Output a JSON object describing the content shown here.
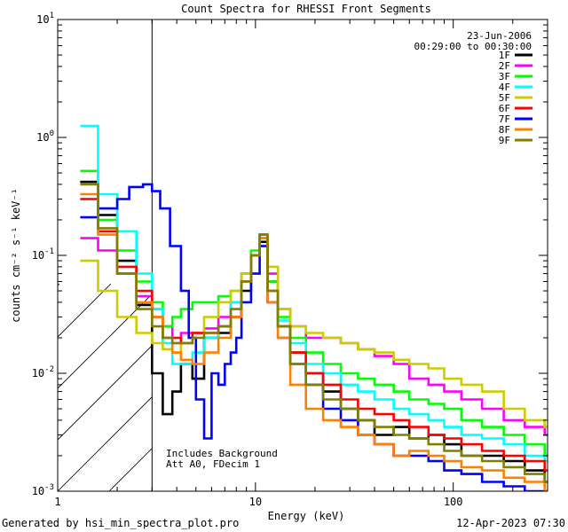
{
  "chart_data": {
    "type": "line",
    "title": "Count Spectra for RHESSI Front Segments",
    "xlabel": "Energy (keV)",
    "ylabel": "counts cm⁻² s⁻¹ keV⁻¹",
    "xscale": "log",
    "yscale": "log",
    "xlim": [
      1,
      300
    ],
    "ylim": [
      0.001,
      10
    ],
    "x_ticks": [
      {
        "value": 1,
        "label": "1"
      },
      {
        "value": 10,
        "label": "10"
      },
      {
        "value": 100,
        "label": "100"
      }
    ],
    "y_ticks": [
      {
        "value": 0.001,
        "base": "10",
        "exp": "-3"
      },
      {
        "value": 0.01,
        "base": "10",
        "exp": "-2"
      },
      {
        "value": 0.1,
        "base": "10",
        "exp": "-1"
      },
      {
        "value": 1,
        "base": "10",
        "exp": "0"
      },
      {
        "value": 10,
        "base": "10",
        "exp": "1"
      }
    ],
    "attenuated_region_max_energy": 3,
    "info_top": [
      "23-Jun-2006",
      "00:29:00 to 00:30:00"
    ],
    "info_bottom": [
      "Includes Background",
      "Att A0, FDecim 1"
    ],
    "legend_position": "top-right",
    "series": [
      {
        "name": "1F",
        "color": "#000000",
        "x": [
          1.3,
          1.6,
          2.0,
          2.5,
          3.0,
          3.4,
          3.8,
          4.2,
          4.8,
          5.5,
          6.5,
          7.5,
          8.5,
          9.5,
          10.5,
          11.5,
          13,
          15,
          18,
          22,
          27,
          33,
          40,
          50,
          60,
          75,
          90,
          110,
          140,
          180,
          230,
          290
        ],
        "y": [
          0.42,
          0.22,
          0.09,
          0.038,
          0.01,
          0.0045,
          0.007,
          0.012,
          0.009,
          0.02,
          0.022,
          0.03,
          0.05,
          0.1,
          0.13,
          0.06,
          0.025,
          0.015,
          0.01,
          0.007,
          0.005,
          0.004,
          0.003,
          0.0035,
          0.0028,
          0.003,
          0.0025,
          0.002,
          0.002,
          0.0018,
          0.0015,
          0.0012
        ]
      },
      {
        "name": "2F",
        "color": "#ff00ff",
        "x": [
          1.3,
          1.6,
          2.0,
          2.5,
          3.0,
          3.4,
          3.8,
          4.2,
          4.8,
          5.5,
          6.5,
          7.5,
          8.5,
          9.5,
          10.5,
          11.5,
          13,
          15,
          18,
          22,
          27,
          33,
          40,
          50,
          60,
          75,
          90,
          110,
          140,
          180,
          230,
          290
        ],
        "y": [
          0.14,
          0.11,
          0.07,
          0.045,
          0.035,
          0.025,
          0.018,
          0.022,
          0.022,
          0.024,
          0.03,
          0.04,
          0.07,
          0.1,
          0.12,
          0.07,
          0.035,
          0.025,
          0.02,
          0.02,
          0.018,
          0.016,
          0.014,
          0.012,
          0.009,
          0.008,
          0.007,
          0.006,
          0.005,
          0.004,
          0.0035,
          0.003
        ]
      },
      {
        "name": "3F",
        "color": "#00ff00",
        "x": [
          1.3,
          1.6,
          2.0,
          2.5,
          3.0,
          3.4,
          3.8,
          4.2,
          4.8,
          5.5,
          6.5,
          7.5,
          8.5,
          9.5,
          10.5,
          11.5,
          13,
          15,
          18,
          22,
          27,
          33,
          40,
          50,
          60,
          75,
          90,
          110,
          140,
          180,
          230,
          290
        ],
        "y": [
          0.52,
          0.2,
          0.11,
          0.06,
          0.04,
          0.025,
          0.03,
          0.035,
          0.04,
          0.04,
          0.045,
          0.05,
          0.07,
          0.11,
          0.14,
          0.06,
          0.03,
          0.02,
          0.015,
          0.012,
          0.01,
          0.009,
          0.008,
          0.007,
          0.006,
          0.0055,
          0.005,
          0.004,
          0.0035,
          0.003,
          0.0025,
          0.002
        ]
      },
      {
        "name": "4F",
        "color": "#00ffff",
        "x": [
          1.3,
          1.6,
          2.0,
          2.5,
          3.0,
          3.4,
          3.8,
          4.2,
          4.8,
          5.5,
          6.5,
          7.5,
          8.5,
          9.5,
          10.5,
          11.5,
          13,
          15,
          18,
          22,
          27,
          33,
          40,
          50,
          60,
          75,
          90,
          110,
          140,
          180,
          230,
          290
        ],
        "y": [
          1.25,
          0.33,
          0.16,
          0.07,
          0.035,
          0.018,
          0.012,
          0.012,
          0.015,
          0.02,
          0.025,
          0.04,
          0.06,
          0.1,
          0.14,
          0.05,
          0.028,
          0.018,
          0.012,
          0.01,
          0.008,
          0.007,
          0.006,
          0.005,
          0.0045,
          0.004,
          0.0035,
          0.003,
          0.0028,
          0.0025,
          0.002,
          0.0018
        ]
      },
      {
        "name": "5F",
        "color": "#cccc00",
        "x": [
          1.3,
          1.6,
          2.0,
          2.5,
          3.0,
          3.4,
          3.8,
          4.2,
          4.8,
          5.5,
          6.5,
          7.5,
          8.5,
          9.5,
          10.5,
          11.5,
          13,
          15,
          18,
          22,
          27,
          33,
          40,
          50,
          60,
          75,
          90,
          110,
          140,
          180,
          230,
          290
        ],
        "y": [
          0.09,
          0.05,
          0.03,
          0.022,
          0.018,
          0.016,
          0.015,
          0.018,
          0.022,
          0.03,
          0.04,
          0.05,
          0.07,
          0.1,
          0.12,
          0.08,
          0.035,
          0.025,
          0.022,
          0.02,
          0.018,
          0.016,
          0.015,
          0.013,
          0.012,
          0.011,
          0.009,
          0.008,
          0.007,
          0.005,
          0.004,
          0.0035
        ]
      },
      {
        "name": "6F",
        "color": "#ff0000",
        "x": [
          1.3,
          1.6,
          2.0,
          2.5,
          3.0,
          3.4,
          3.8,
          4.2,
          4.8,
          5.5,
          6.5,
          7.5,
          8.5,
          9.5,
          10.5,
          11.5,
          13,
          15,
          18,
          22,
          27,
          33,
          40,
          50,
          60,
          75,
          90,
          110,
          140,
          180,
          230,
          290
        ],
        "y": [
          0.3,
          0.16,
          0.08,
          0.05,
          0.03,
          0.02,
          0.02,
          0.018,
          0.022,
          0.022,
          0.025,
          0.03,
          0.06,
          0.1,
          0.15,
          0.05,
          0.025,
          0.015,
          0.01,
          0.008,
          0.006,
          0.005,
          0.0045,
          0.004,
          0.0035,
          0.003,
          0.0028,
          0.0025,
          0.0022,
          0.002,
          0.0018,
          0.0015
        ]
      },
      {
        "name": "7F",
        "color": "#0000ff",
        "x": [
          1.3,
          1.6,
          2.0,
          2.3,
          2.7,
          3.0,
          3.3,
          3.7,
          4.2,
          4.6,
          5.0,
          5.5,
          6.0,
          6.5,
          7.0,
          7.5,
          8.0,
          8.5,
          9.5,
          10.5,
          11.5,
          13,
          15,
          18,
          22,
          27,
          33,
          40,
          50,
          60,
          75,
          90,
          110,
          140,
          180,
          230,
          290
        ],
        "y": [
          0.21,
          0.25,
          0.3,
          0.38,
          0.4,
          0.35,
          0.25,
          0.12,
          0.05,
          0.02,
          0.006,
          0.0028,
          0.01,
          0.008,
          0.012,
          0.015,
          0.02,
          0.04,
          0.07,
          0.12,
          0.04,
          0.02,
          0.012,
          0.008,
          0.005,
          0.004,
          0.003,
          0.0025,
          0.002,
          0.002,
          0.0018,
          0.0015,
          0.0014,
          0.0012,
          0.0011,
          0.001,
          0.001
        ]
      },
      {
        "name": "8F",
        "color": "#ff8000",
        "x": [
          1.3,
          1.6,
          2.0,
          2.5,
          3.0,
          3.4,
          3.8,
          4.2,
          4.8,
          5.5,
          6.5,
          7.5,
          8.5,
          9.5,
          10.5,
          11.5,
          13,
          15,
          18,
          22,
          27,
          33,
          40,
          50,
          60,
          75,
          90,
          110,
          140,
          180,
          230,
          290
        ],
        "y": [
          0.33,
          0.15,
          0.07,
          0.04,
          0.03,
          0.02,
          0.015,
          0.013,
          0.012,
          0.015,
          0.02,
          0.03,
          0.06,
          0.1,
          0.14,
          0.04,
          0.02,
          0.008,
          0.005,
          0.004,
          0.0035,
          0.003,
          0.0025,
          0.002,
          0.0022,
          0.002,
          0.0018,
          0.0016,
          0.0015,
          0.0013,
          0.0012,
          0.001
        ]
      },
      {
        "name": "9F",
        "color": "#808000",
        "x": [
          1.3,
          1.6,
          2.0,
          2.5,
          3.0,
          3.4,
          3.8,
          4.2,
          4.8,
          5.5,
          6.5,
          7.5,
          8.5,
          9.5,
          10.5,
          11.5,
          13,
          15,
          18,
          22,
          27,
          33,
          40,
          50,
          60,
          75,
          90,
          110,
          140,
          180,
          230,
          290
        ],
        "y": [
          0.4,
          0.17,
          0.07,
          0.035,
          0.025,
          0.02,
          0.018,
          0.018,
          0.02,
          0.022,
          0.025,
          0.035,
          0.06,
          0.1,
          0.15,
          0.05,
          0.025,
          0.012,
          0.008,
          0.006,
          0.005,
          0.004,
          0.0035,
          0.003,
          0.0028,
          0.0025,
          0.0022,
          0.002,
          0.0018,
          0.0016,
          0.0014,
          0.0012
        ]
      }
    ]
  },
  "footer": {
    "generated_by": "Generated by hsi_min_spectra_plot.pro",
    "timestamp": "12-Apr-2023 07:30"
  }
}
